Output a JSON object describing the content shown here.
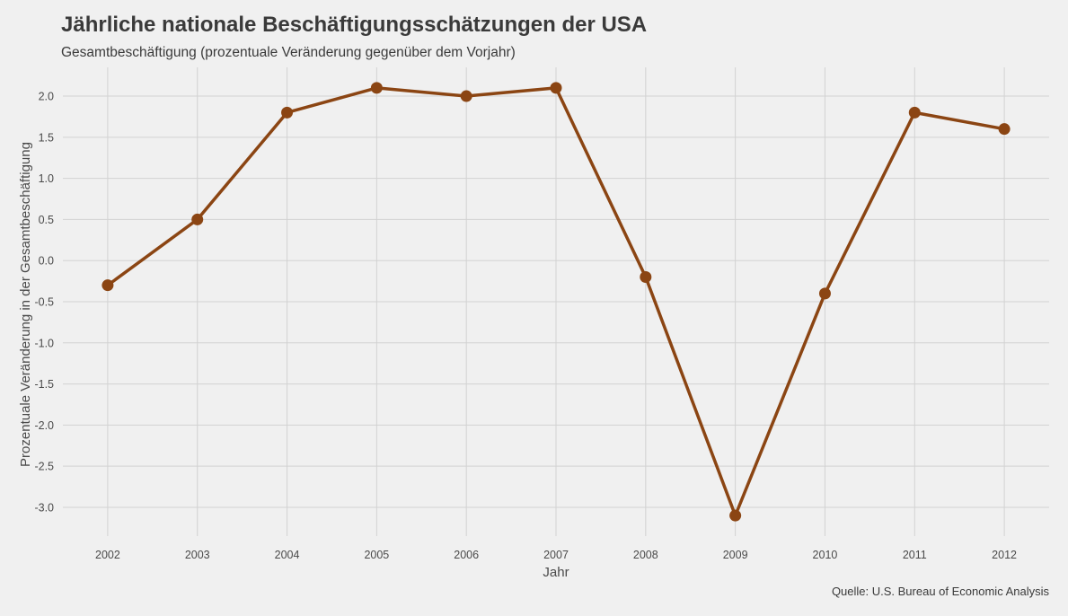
{
  "chart_data": {
    "type": "line",
    "title": "Jährliche nationale Beschäftigungsschätzungen der USA",
    "subtitle": "Gesamtbeschäftigung (prozentuale Veränderung gegenüber dem Vorjahr)",
    "xlabel": "Jahr",
    "ylabel": "Prozentuale Veränderung in der Gesamtbeschäftigung",
    "caption": "Quelle: U.S. Bureau of Economic Analysis",
    "x": [
      2002,
      2003,
      2004,
      2005,
      2006,
      2007,
      2008,
      2009,
      2010,
      2011,
      2012
    ],
    "series": [
      {
        "values": [
          -0.3,
          0.5,
          1.8,
          2.1,
          2.0,
          2.1,
          -0.2,
          -3.1,
          -0.4,
          1.8,
          1.6
        ]
      }
    ],
    "ylim": [
      -3.35,
      2.35
    ],
    "yticks": [
      2.0,
      1.5,
      1.0,
      0.5,
      0.0,
      -0.5,
      -1.0,
      -1.5,
      -2.0,
      -2.5,
      -3.0
    ],
    "ytick_labels": [
      "2.0",
      "1.5",
      "1.0",
      "0.5",
      "0.0",
      "-0.5",
      "-1.0",
      "-1.5",
      "-2.0",
      "-2.5",
      "-3.0"
    ],
    "xtick_labels": [
      "2002",
      "2003",
      "2004",
      "2005",
      "2006",
      "2007",
      "2008",
      "2009",
      "2010",
      "2011",
      "2012"
    ],
    "grid": true,
    "legend": "none",
    "colors": {
      "line": "#8b4513",
      "background": "#f0f0f0",
      "grid": "#d2d2d2"
    }
  }
}
